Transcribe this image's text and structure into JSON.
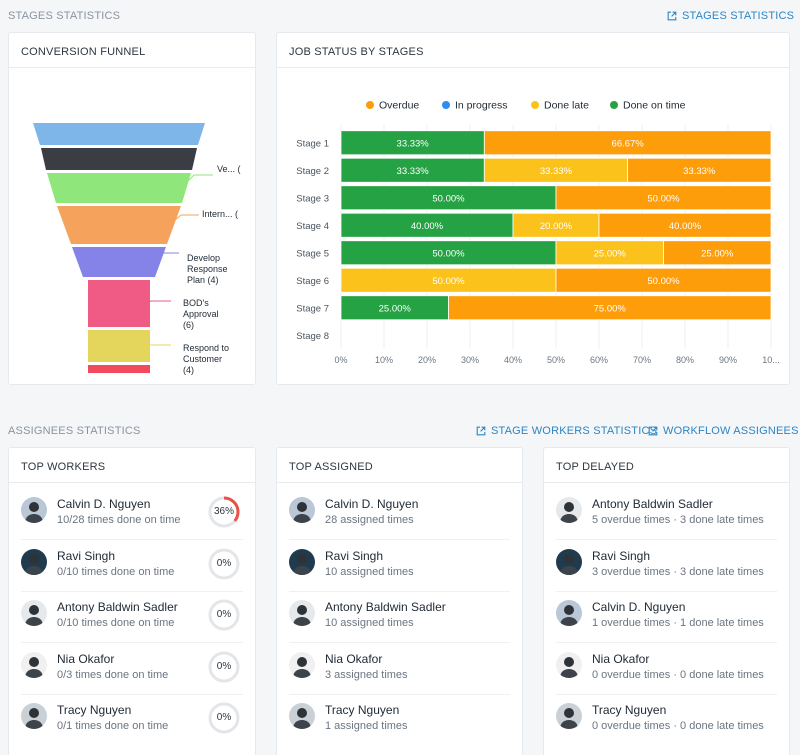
{
  "stages_section": {
    "title": "STAGES STATISTICS",
    "link": "STAGES STATISTICS"
  },
  "funnel": {
    "title": "CONVERSION FUNNEL",
    "colors": [
      "#7eb6ea",
      "#3a3d44",
      "#8fe67a",
      "#f5a35c",
      "#8583e8",
      "#ef5b84",
      "#e4d65c",
      "#f04a5e"
    ],
    "labels": [
      {
        "lines": [
          "Ve... ("
        ]
      },
      {
        "lines": [
          "Intern... ("
        ]
      },
      {
        "lines": [
          "Develop",
          "Response",
          "Plan (4)"
        ]
      },
      {
        "lines": [
          "BOD's",
          "Approval",
          "(6)"
        ]
      },
      {
        "lines": [
          "Respond to",
          "Customer",
          "(4)"
        ]
      }
    ]
  },
  "job_status": {
    "title": "JOB STATUS BY STAGES"
  },
  "chart_data": {
    "type": "bar",
    "stacked": true,
    "orientation": "horizontal",
    "categories": [
      "Stage 1",
      "Stage 2",
      "Stage 3",
      "Stage 4",
      "Stage 5",
      "Stage 6",
      "Stage 7",
      "Stage 8"
    ],
    "series": [
      {
        "name": "Done on time",
        "color": "#25a244",
        "values": [
          33.33,
          33.33,
          50.0,
          40.0,
          50.0,
          0,
          25.0,
          0
        ]
      },
      {
        "name": "Done late",
        "color": "#fbc21c",
        "values": [
          0,
          33.33,
          0,
          20.0,
          25.0,
          50.0,
          0,
          0
        ]
      },
      {
        "name": "Overdue",
        "color": "#fd9d0a",
        "values": [
          66.67,
          33.33,
          50.0,
          40.0,
          25.0,
          50.0,
          75.0,
          0
        ]
      },
      {
        "name": "In progress",
        "color": "#2f8cf1",
        "values": [
          0,
          0,
          0,
          0,
          0,
          0,
          0,
          0
        ]
      }
    ],
    "data_labels": [
      [
        "33.33%",
        "",
        "66.67%",
        ""
      ],
      [
        "33.33%",
        "33.33%",
        "33.33%",
        ""
      ],
      [
        "50.00%",
        "",
        "50.00%",
        ""
      ],
      [
        "40.00%",
        "20.00%",
        "40.00%",
        ""
      ],
      [
        "50.00%",
        "25.00%",
        "25.00%",
        ""
      ],
      [
        "",
        "50.00%",
        "50.00%",
        ""
      ],
      [
        "25.00%",
        "",
        "75.00%",
        ""
      ],
      [
        "",
        "",
        "",
        ""
      ]
    ],
    "legend": [
      "Overdue",
      "In progress",
      "Done late",
      "Done on time"
    ],
    "legend_colors": [
      "#fd9d0a",
      "#2f8cf1",
      "#fbc21c",
      "#25a244"
    ],
    "legend_position": "top",
    "xlim": [
      0,
      100
    ],
    "x_ticks": [
      "0%",
      "10%",
      "20%",
      "30%",
      "40%",
      "50%",
      "60%",
      "70%",
      "80%",
      "90%",
      "10..."
    ]
  },
  "assignees_section": {
    "title": "ASSIGNEES STATISTICS",
    "link1": "STAGE WORKERS STATISTICS",
    "link2": "WORKFLOW ASSIGNEES"
  },
  "top_workers": {
    "title": "TOP WORKERS",
    "items": [
      {
        "name": "Calvin D. Nguyen",
        "sub": "10/28 times done on time",
        "ring": "36%",
        "pct": 0.36,
        "avatar": "#b9c7d6"
      },
      {
        "name": "Ravi Singh",
        "sub": "0/10 times done on time",
        "ring": "0%",
        "pct": 0,
        "avatar": "#1f3b4d"
      },
      {
        "name": "Antony Baldwin Sadler",
        "sub": "0/10 times done on time",
        "ring": "0%",
        "pct": 0,
        "avatar": "#e6e9ec"
      },
      {
        "name": "Nia Okafor",
        "sub": "0/3 times done on time",
        "ring": "0%",
        "pct": 0,
        "avatar": "#f0f0f0"
      },
      {
        "name": "Tracy Nguyen",
        "sub": "0/1 times done on time",
        "ring": "0%",
        "pct": 0,
        "avatar": "#c9d0d6"
      }
    ]
  },
  "top_assigned": {
    "title": "TOP ASSIGNED",
    "items": [
      {
        "name": "Calvin D. Nguyen",
        "sub": "28 assigned times",
        "avatar": "#b9c7d6"
      },
      {
        "name": "Ravi Singh",
        "sub": "10 assigned times",
        "avatar": "#1f3b4d"
      },
      {
        "name": "Antony Baldwin Sadler",
        "sub": "10 assigned times",
        "avatar": "#e6e9ec"
      },
      {
        "name": "Nia Okafor",
        "sub": "3 assigned times",
        "avatar": "#f0f0f0"
      },
      {
        "name": "Tracy Nguyen",
        "sub": "1 assigned times",
        "avatar": "#c9d0d6"
      }
    ]
  },
  "top_delayed": {
    "title": "TOP DELAYED",
    "items": [
      {
        "name": "Antony Baldwin Sadler",
        "sub": "5 overdue times · 3 done late times",
        "avatar": "#e6e9ec"
      },
      {
        "name": "Ravi Singh",
        "sub": "3 overdue times · 3 done late times",
        "avatar": "#1f3b4d"
      },
      {
        "name": "Calvin D. Nguyen",
        "sub": "1 overdue times · 1 done late times",
        "avatar": "#b9c7d6"
      },
      {
        "name": "Nia Okafor",
        "sub": "0 overdue times · 0 done late times",
        "avatar": "#f0f0f0"
      },
      {
        "name": "Tracy Nguyen",
        "sub": "0 overdue times · 0 done late times",
        "avatar": "#c9d0d6"
      }
    ]
  },
  "icons": {
    "external_link": "external-link-icon",
    "avatar": "user-avatar-icon",
    "ring": "progress-ring-icon"
  },
  "colors": {
    "link": "#2b86c5",
    "ring_track": "#e3e5e8",
    "ring_fill": "#e8514a"
  }
}
